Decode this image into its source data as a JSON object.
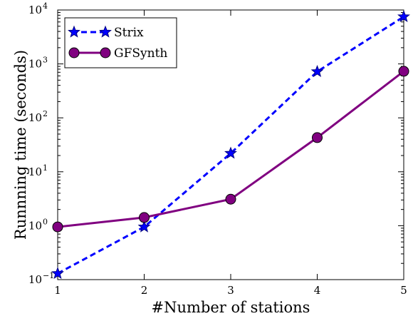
{
  "chart_data": {
    "type": "line",
    "xlabel": "#Number of stations",
    "ylabel": "Runnning time (seconds)",
    "x": [
      1,
      2,
      3,
      4,
      5
    ],
    "xlim": [
      1,
      5
    ],
    "ylim": [
      0.1,
      10000
    ],
    "yscale": "log",
    "grid": false,
    "legend_position": "top-left",
    "x_ticks": [
      "1",
      "2",
      "3",
      "4",
      "5"
    ],
    "y_ticks": [
      {
        "value": 0.1,
        "base": "10",
        "exp": "−1"
      },
      {
        "value": 1,
        "base": "10",
        "exp": "0"
      },
      {
        "value": 10,
        "base": "10",
        "exp": "1"
      },
      {
        "value": 100,
        "base": "10",
        "exp": "2"
      },
      {
        "value": 1000,
        "base": "10",
        "exp": "3"
      },
      {
        "value": 10000,
        "base": "10",
        "exp": "4"
      }
    ],
    "series": [
      {
        "name": "Strix",
        "values": [
          0.13,
          0.95,
          22,
          720,
          7500
        ],
        "color": "#0000ff",
        "line_style": "dashed",
        "marker": "star",
        "marker_color": "#000080"
      },
      {
        "name": "GFSynth",
        "values": [
          0.95,
          1.42,
          3.1,
          43,
          730
        ],
        "color": "#800080",
        "line_style": "solid",
        "marker": "circle",
        "marker_color": "#800080"
      }
    ]
  }
}
